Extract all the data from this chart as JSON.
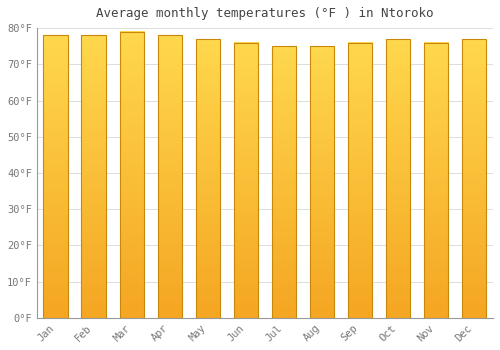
{
  "title": "Average monthly temperatures (°F ) in Ntoroko",
  "months": [
    "Jan",
    "Feb",
    "Mar",
    "Apr",
    "May",
    "Jun",
    "Jul",
    "Aug",
    "Sep",
    "Oct",
    "Nov",
    "Dec"
  ],
  "values": [
    78,
    78,
    79,
    78,
    77,
    76,
    75,
    75,
    76,
    77,
    76,
    77
  ],
  "bar_color_bottom": "#F5A623",
  "bar_color_top": "#FFD84D",
  "bar_edge_color": "#C8890A",
  "background_color": "#FFFFFF",
  "plot_bg_color": "#FFFFFF",
  "grid_color": "#DDDDDD",
  "title_fontsize": 9,
  "tick_fontsize": 7.5,
  "ylim": [
    0,
    80
  ],
  "yticks": [
    0,
    10,
    20,
    30,
    40,
    50,
    60,
    70,
    80
  ],
  "bar_width": 0.65
}
